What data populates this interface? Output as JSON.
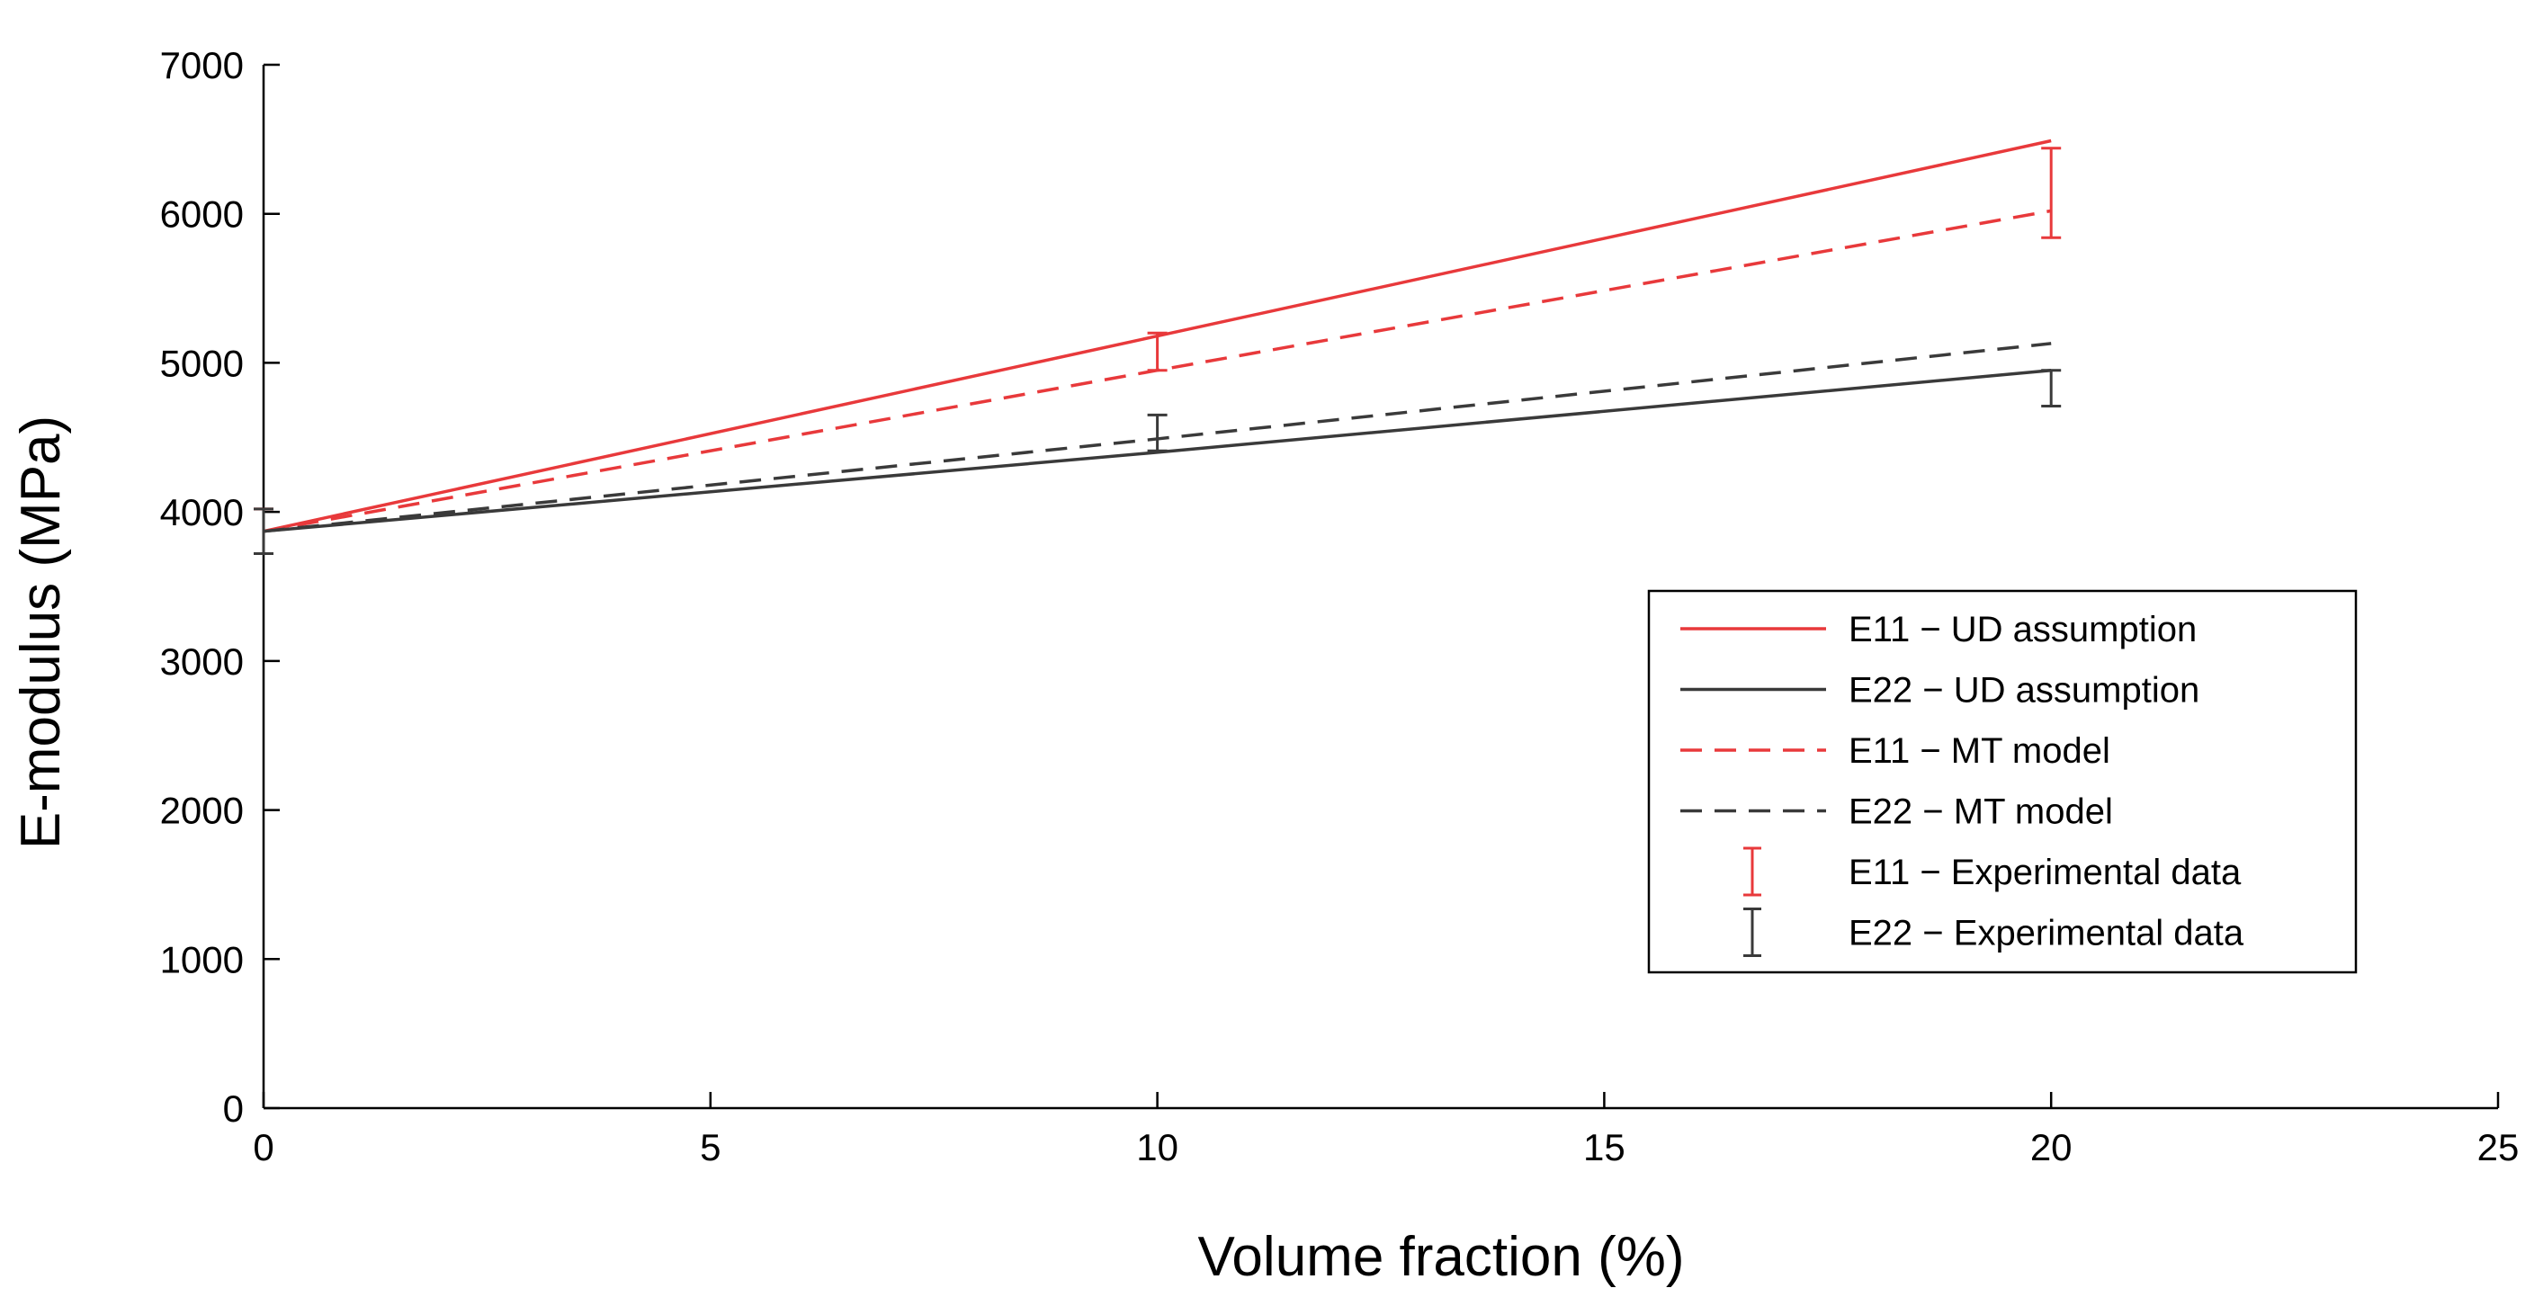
{
  "chart_data": {
    "type": "line",
    "title": "",
    "xlabel": "Volume fraction (%)",
    "ylabel": "E-modulus (MPa)",
    "xlim": [
      0,
      25
    ],
    "ylim": [
      0,
      7000
    ],
    "xticks": [
      0,
      5,
      10,
      15,
      20,
      25
    ],
    "yticks": [
      0,
      1000,
      2000,
      3000,
      4000,
      5000,
      6000,
      7000
    ],
    "grid": false,
    "legend_position": "center-right",
    "series": [
      {
        "name": "E11 − UD assumption",
        "style": "solid",
        "color": "#e8393b",
        "x": [
          0,
          10,
          20
        ],
        "y": [
          3870,
          5180,
          6490
        ]
      },
      {
        "name": "E22 − UD assumption",
        "style": "solid",
        "color": "#3a3a3a",
        "x": [
          0,
          10,
          20
        ],
        "y": [
          3870,
          4400,
          4950
        ]
      },
      {
        "name": "E11 − MT model",
        "style": "dashed",
        "color": "#e8393b",
        "x": [
          0,
          10,
          20
        ],
        "y": [
          3870,
          4950,
          6020
        ]
      },
      {
        "name": "E22 − MT model",
        "style": "dashed",
        "color": "#3a3a3a",
        "x": [
          0,
          10,
          20
        ],
        "y": [
          3870,
          4490,
          5130
        ]
      },
      {
        "name": "E11 − Experimental data",
        "style": "errorbar",
        "color": "#e8393b",
        "x": [
          0,
          10,
          20
        ],
        "y": [
          3870,
          5075,
          6140
        ],
        "yerr_low": [
          3720,
          4950,
          5840
        ],
        "yerr_high": [
          4020,
          5200,
          6440
        ]
      },
      {
        "name": "E22 − Experimental data",
        "style": "errorbar",
        "color": "#3a3a3a",
        "x": [
          0,
          10,
          20
        ],
        "y": [
          3870,
          4530,
          4830
        ],
        "yerr_low": [
          3720,
          4410,
          4710
        ],
        "yerr_high": [
          4020,
          4650,
          4950
        ]
      }
    ]
  }
}
